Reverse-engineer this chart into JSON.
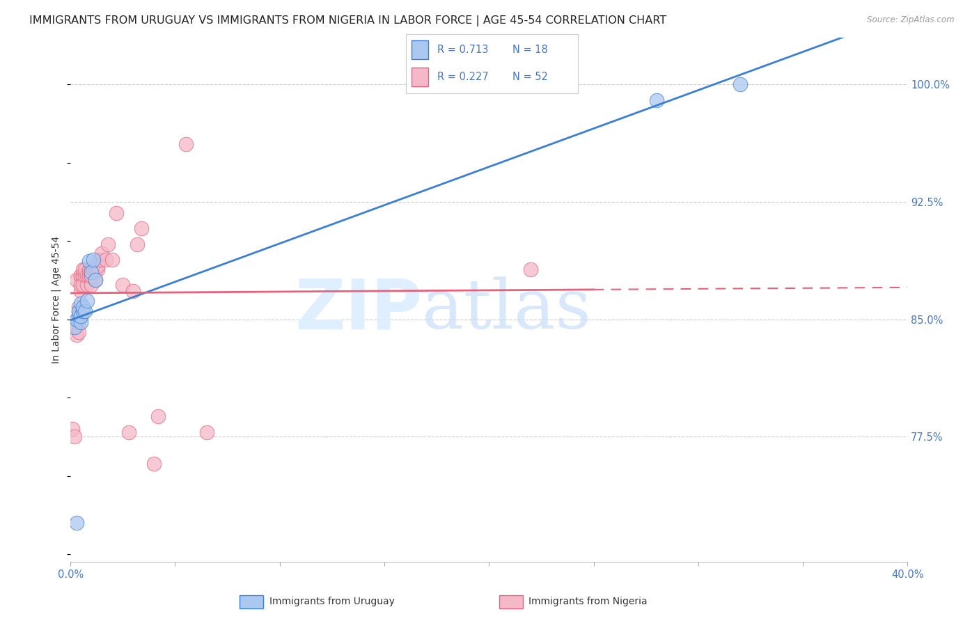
{
  "title": "IMMIGRANTS FROM URUGUAY VS IMMIGRANTS FROM NIGERIA IN LABOR FORCE | AGE 45-54 CORRELATION CHART",
  "source": "Source: ZipAtlas.com",
  "ylabel": "In Labor Force | Age 45-54",
  "xlim": [
    0.0,
    0.4
  ],
  "ylim": [
    0.695,
    1.03
  ],
  "xticks": [
    0.0,
    0.05,
    0.1,
    0.15,
    0.2,
    0.25,
    0.3,
    0.35,
    0.4
  ],
  "xticklabels": [
    "0.0%",
    "",
    "",
    "",
    "",
    "",
    "",
    "",
    "40.0%"
  ],
  "yticks_right": [
    0.775,
    0.85,
    0.925,
    1.0
  ],
  "yticklabels_right": [
    "77.5%",
    "85.0%",
    "92.5%",
    "100.0%"
  ],
  "legend_r1": "0.713",
  "legend_n1": "18",
  "legend_r2": "0.227",
  "legend_n2": "52",
  "legend_label1": "Immigrants from Uruguay",
  "legend_label2": "Immigrants from Nigeria",
  "color_uruguay": "#aac8f0",
  "color_nigeria": "#f5b8c8",
  "color_trend_uruguay": "#3a7fd5",
  "color_trend_nigeria": "#e8607a",
  "color_axis_label": "#4477cc",
  "color_title": "#222222",
  "background_color": "#ffffff",
  "grid_color": "#cccccc",
  "uruguay_x": [
    0.002,
    0.003,
    0.004,
    0.004,
    0.005,
    0.005,
    0.005,
    0.006,
    0.006,
    0.007,
    0.008,
    0.009,
    0.01,
    0.011,
    0.012,
    0.28,
    0.32,
    0.003
  ],
  "uruguay_y": [
    0.845,
    0.85,
    0.852,
    0.855,
    0.848,
    0.852,
    0.86,
    0.855,
    0.858,
    0.855,
    0.862,
    0.887,
    0.88,
    0.888,
    0.875,
    0.99,
    1.0,
    0.72
  ],
  "nigeria_x": [
    0.001,
    0.002,
    0.003,
    0.003,
    0.003,
    0.004,
    0.004,
    0.004,
    0.004,
    0.005,
    0.005,
    0.005,
    0.005,
    0.005,
    0.006,
    0.006,
    0.006,
    0.006,
    0.007,
    0.007,
    0.008,
    0.008,
    0.009,
    0.009,
    0.009,
    0.01,
    0.01,
    0.01,
    0.01,
    0.011,
    0.011,
    0.012,
    0.012,
    0.013,
    0.013,
    0.014,
    0.014,
    0.015,
    0.017,
    0.018,
    0.02,
    0.022,
    0.025,
    0.028,
    0.03,
    0.032,
    0.034,
    0.04,
    0.042,
    0.055,
    0.065,
    0.22
  ],
  "nigeria_y": [
    0.78,
    0.775,
    0.845,
    0.84,
    0.875,
    0.858,
    0.855,
    0.848,
    0.842,
    0.878,
    0.878,
    0.868,
    0.852,
    0.872,
    0.878,
    0.878,
    0.882,
    0.872,
    0.878,
    0.882,
    0.872,
    0.878,
    0.878,
    0.878,
    0.882,
    0.882,
    0.878,
    0.872,
    0.878,
    0.884,
    0.882,
    0.882,
    0.875,
    0.882,
    0.884,
    0.888,
    0.888,
    0.892,
    0.888,
    0.898,
    0.888,
    0.918,
    0.872,
    0.778,
    0.868,
    0.898,
    0.908,
    0.758,
    0.788,
    0.962,
    0.778,
    0.882
  ],
  "watermark_zip": "ZIP",
  "watermark_atlas": "atlas",
  "title_fontsize": 11.5,
  "axis_fontsize": 10,
  "tick_fontsize": 10.5
}
